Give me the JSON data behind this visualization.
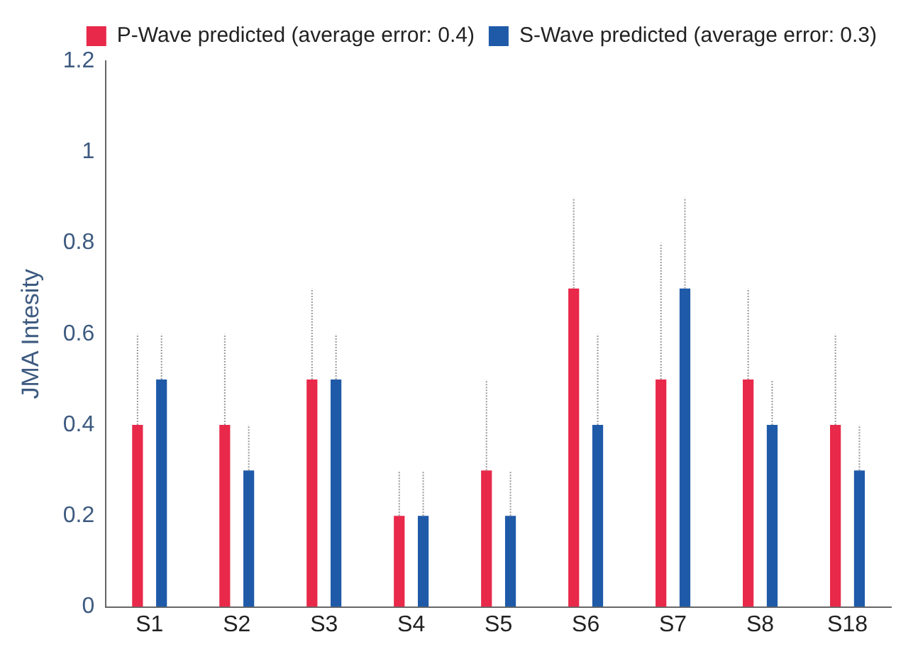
{
  "chart_data": {
    "type": "bar",
    "ylabel": "JMA Intesity",
    "categories": [
      "S1",
      "S2",
      "S3",
      "S4",
      "S5",
      "S6",
      "S7",
      "S8",
      "S18"
    ],
    "series": [
      {
        "name": "P-Wave predicted (average error: 0.4)",
        "color": "#e8294a",
        "values": [
          0.4,
          0.4,
          0.5,
          0.2,
          0.3,
          0.7,
          0.5,
          0.5,
          0.4
        ],
        "errors": [
          [
            0.4,
            0.6
          ],
          [
            0.4,
            0.6
          ],
          [
            0.5,
            0.7
          ],
          [
            0.2,
            0.3
          ],
          [
            0.3,
            0.5
          ],
          [
            0.7,
            0.9
          ],
          [
            0.5,
            0.8
          ],
          [
            0.5,
            0.7
          ],
          [
            0.4,
            0.6
          ]
        ]
      },
      {
        "name": "S-Wave predicted (average error: 0.3)",
        "color": "#1f5aa8",
        "values": [
          0.5,
          0.3,
          0.5,
          0.2,
          0.2,
          0.4,
          0.7,
          0.4,
          0.3
        ],
        "errors": [
          [
            0.5,
            0.6
          ],
          [
            0.3,
            0.4
          ],
          [
            0.5,
            0.6
          ],
          [
            0.2,
            0.3
          ],
          [
            0.2,
            0.3
          ],
          [
            0.4,
            0.6
          ],
          [
            0.7,
            0.9
          ],
          [
            0.4,
            0.5
          ],
          [
            0.3,
            0.4
          ]
        ]
      }
    ],
    "ylim": [
      0,
      1.2
    ],
    "yticks": [
      0,
      0.2,
      0.4,
      0.6,
      0.8,
      1,
      1.2
    ],
    "grid": false,
    "legend": "top right"
  }
}
